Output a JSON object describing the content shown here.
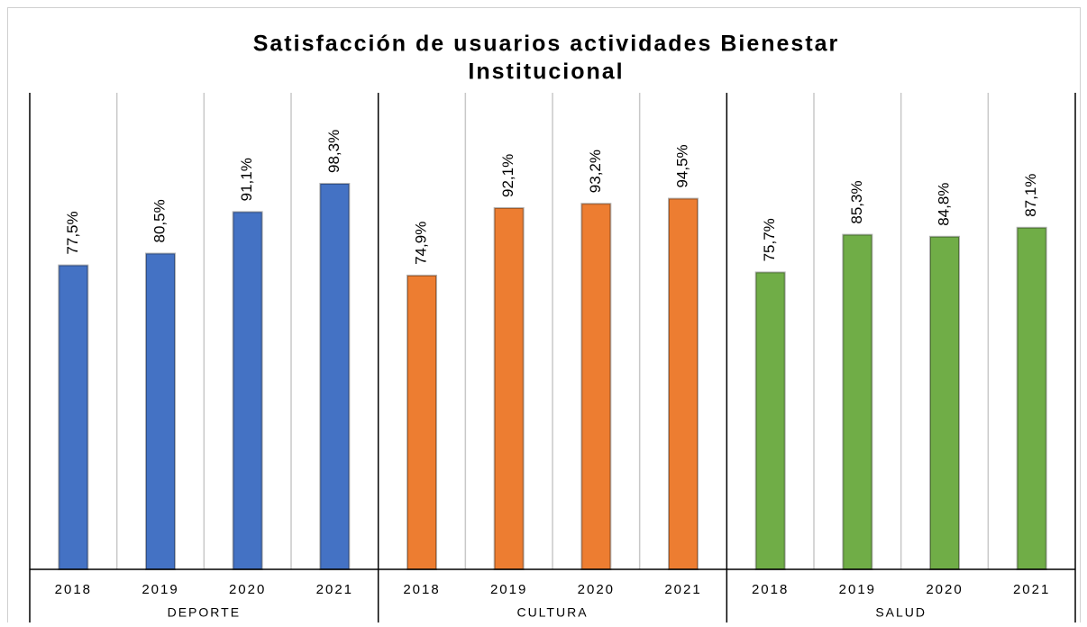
{
  "chart_data": {
    "type": "bar",
    "title": "Satisfacción de usuarios actividades Bienestar Institucional",
    "categories": [
      "2018",
      "2019",
      "2020",
      "2021"
    ],
    "series": [
      {
        "name": "DEPORTE",
        "color": "#4472c4",
        "values": [
          77.5,
          80.5,
          91.1,
          98.3
        ],
        "value_labels": [
          "77,5%",
          "80,5%",
          "91,1%",
          "98,3%"
        ]
      },
      {
        "name": "CULTURA",
        "color": "#ed7d31",
        "values": [
          74.9,
          92.1,
          93.2,
          94.5
        ],
        "value_labels": [
          "74,9%",
          "92,1%",
          "93,2%",
          "94,5%"
        ]
      },
      {
        "name": "SALUD",
        "color": "#70ad47",
        "values": [
          75.7,
          85.3,
          84.8,
          87.1
        ],
        "value_labels": [
          "75,7%",
          "85,3%",
          "84,8%",
          "87,1%"
        ]
      }
    ],
    "ylim": [
      0,
      121.5
    ]
  }
}
